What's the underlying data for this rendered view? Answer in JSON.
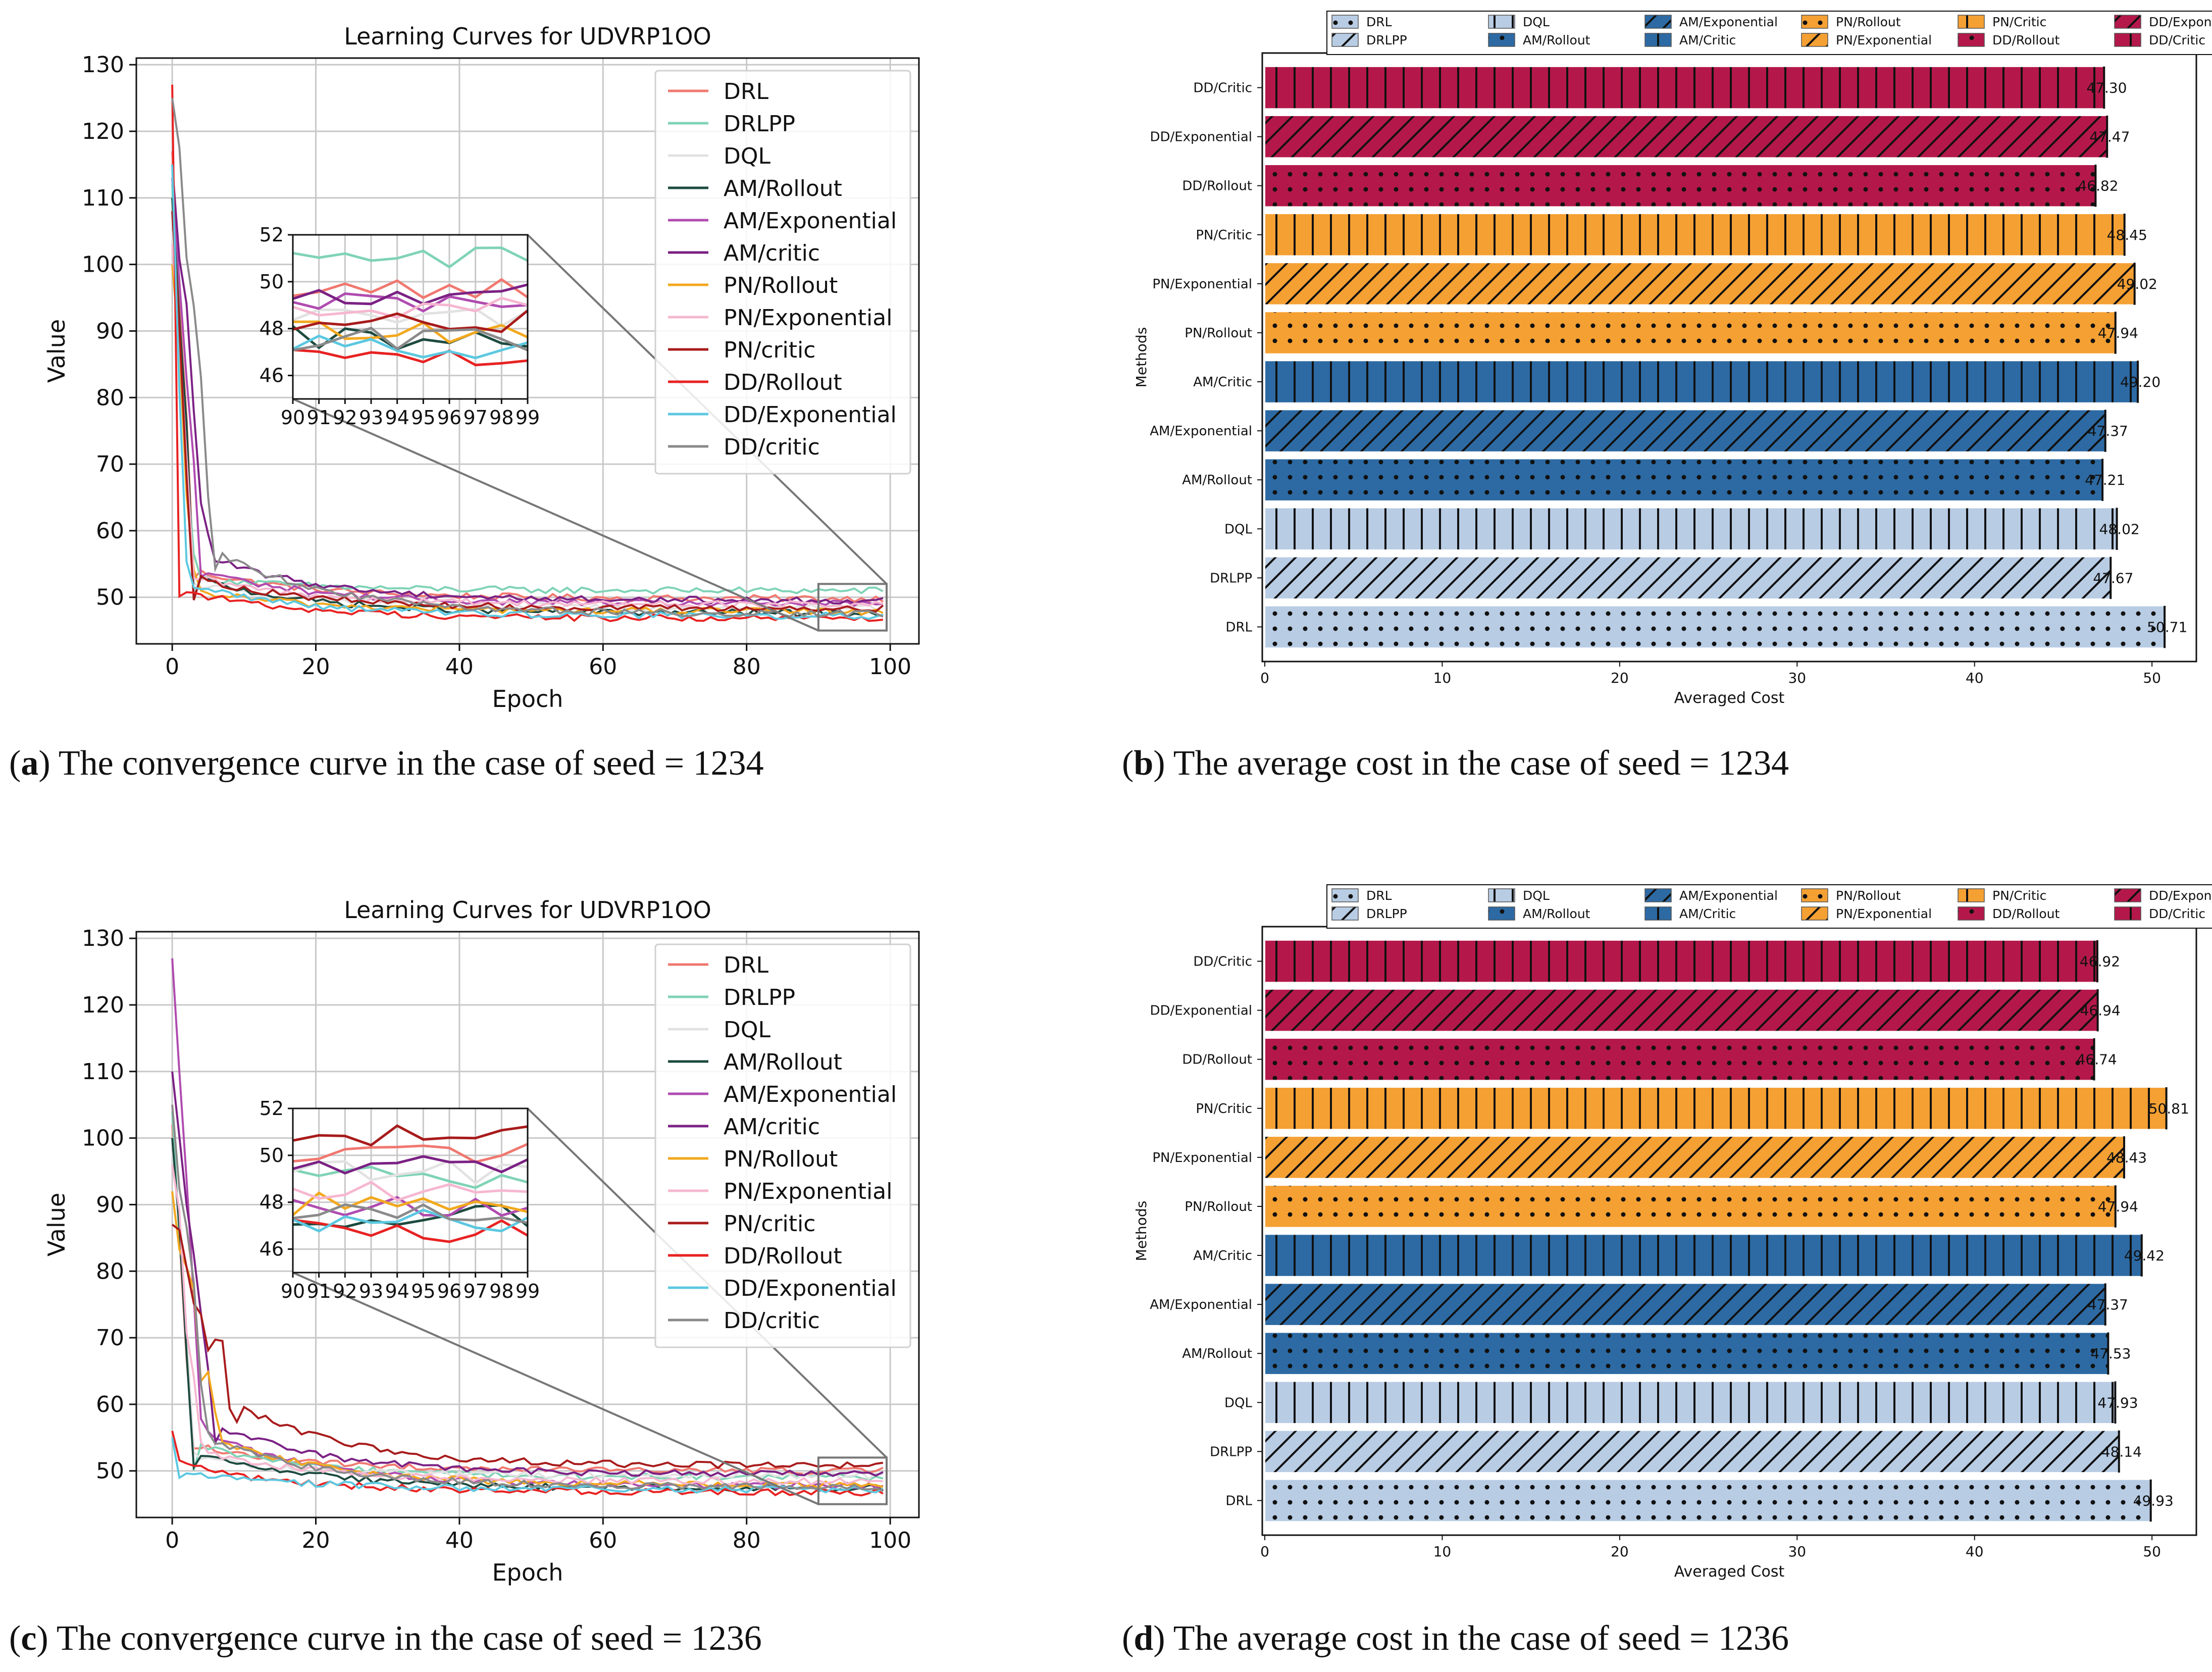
{
  "captions": {
    "a": {
      "letter": "a",
      "text": ") The convergence curve in the case of seed = 1234"
    },
    "b": {
      "letter": "b",
      "text": ") The average cost in the case of seed = 1234"
    },
    "c": {
      "letter": "c",
      "text": ") The convergence curve in the case of seed = 1236"
    },
    "d": {
      "letter": "d",
      "text": ") The average cost in the case of seed = 1236"
    }
  },
  "colors": {
    "DRL": "#f07870",
    "DRLPP": "#7fd3b6",
    "DQL": "#e2e2e2",
    "AM/Rollout": "#1d4a3f",
    "AM/Exponential": "#b04bb0",
    "AM/critic": "#7b2184",
    "PN/Rollout": "#f2a81e",
    "PN/Exponential": "#f6b7d0",
    "PN/critic": "#a81b1b",
    "DD/Rollout": "#e82222",
    "DD/Exponential": "#5cc8e0",
    "DD/critic": "#8a8a8a",
    "bar_DRL_family": "#b8cce4",
    "bar_AM_family": "#2d6aa3",
    "bar_PN_family": "#f5a033",
    "bar_DD_family": "#b4184b"
  },
  "chart_data": [
    {
      "id": "a",
      "type": "line",
      "title": "Learning Curves for UDVRP1OO",
      "xlabel": "Epoch",
      "ylabel": "Value",
      "xlim": [
        -5,
        104
      ],
      "ylim": [
        43,
        131
      ],
      "xticks": [
        0,
        20,
        40,
        60,
        80,
        100
      ],
      "yticks": [
        50,
        60,
        70,
        80,
        90,
        100,
        110,
        120,
        130
      ],
      "legend": [
        "DRL",
        "DRLPP",
        "DQL",
        "AM/Rollout",
        "AM/Exponential",
        "AM/critic",
        "PN/Rollout",
        "PN/Exponential",
        "PN/critic",
        "DD/Rollout",
        "DD/Exponential",
        "DD/critic"
      ],
      "series": [
        {
          "name": "DRL",
          "start": 117,
          "mid": 54,
          "final": 49.8,
          "drop": 3
        },
        {
          "name": "DRLPP",
          "start": 112,
          "mid": 53,
          "final": 51.0,
          "drop": 3
        },
        {
          "name": "DQL",
          "start": 105,
          "mid": 52,
          "final": 48.5,
          "drop": 3
        },
        {
          "name": "AM/Rollout",
          "start": 110,
          "mid": 53,
          "final": 47.6,
          "drop": 3
        },
        {
          "name": "AM/Exponential",
          "start": 113,
          "mid": 54,
          "final": 49.0,
          "drop": 4
        },
        {
          "name": "AM/critic",
          "start": 115,
          "mid": 56,
          "final": 49.5,
          "drop": 5
        },
        {
          "name": "PN/Rollout",
          "start": 100,
          "mid": 51,
          "final": 47.9,
          "drop": 3
        },
        {
          "name": "PN/Exponential",
          "start": 103,
          "mid": 53,
          "final": 48.9,
          "drop": 3
        },
        {
          "name": "PN/critic",
          "start": 108,
          "mid": 53,
          "final": 48.3,
          "drop": 3
        },
        {
          "name": "DD/Rollout",
          "start": 127,
          "mid": 51,
          "final": 46.8,
          "drop": 1
        },
        {
          "name": "DD/Exponential",
          "start": 115,
          "mid": 52,
          "final": 47.2,
          "drop": 2
        },
        {
          "name": "DD/critic",
          "start": 125,
          "mid": 57,
          "final": 47.5,
          "drop": 6
        }
      ],
      "inset": {
        "xlim": [
          90,
          99
        ],
        "ylim": [
          45,
          52
        ],
        "xticks": [
          90,
          91,
          92,
          93,
          94,
          95,
          96,
          97,
          98,
          99
        ],
        "yticks": [
          46,
          48,
          50,
          52
        ]
      }
    },
    {
      "id": "b",
      "type": "bar",
      "orientation": "horizontal",
      "xlabel": "Averaged Cost",
      "ylabel": "Methods",
      "xlim": [
        0,
        52.5
      ],
      "xticks": [
        0,
        10,
        20,
        30,
        40,
        50
      ],
      "categories": [
        "DRL",
        "DRLPP",
        "DQL",
        "AM/Rollout",
        "AM/Exponential",
        "AM/Critic",
        "PN/Rollout",
        "PN/Exponential",
        "PN/Critic",
        "DD/Rollout",
        "DD/Exponential",
        "DD/Critic"
      ],
      "values": [
        50.71,
        47.67,
        48.02,
        47.21,
        47.37,
        49.2,
        47.94,
        49.02,
        48.45,
        46.82,
        47.47,
        47.3
      ],
      "labels": [
        "50.71",
        "47.67",
        "48.02",
        "47.21",
        "47.37",
        "49.20",
        "47.94",
        "49.02",
        "48.45",
        "46.82",
        "47.47",
        "47.30"
      ],
      "legend": [
        "DRL",
        "DRLPP",
        "DQL",
        "AM/Rollout",
        "AM/Exponential",
        "AM/Critic",
        "PN/Rollout",
        "PN/Exponential",
        "PN/Critic",
        "DD/Rollout",
        "DD/Exponential",
        "DD/Critic"
      ]
    },
    {
      "id": "c",
      "type": "line",
      "title": "Learning Curves for UDVRP1OO",
      "xlabel": "Epoch",
      "ylabel": "Value",
      "xlim": [
        -5,
        104
      ],
      "ylim": [
        43,
        131
      ],
      "xticks": [
        0,
        20,
        40,
        60,
        80,
        100
      ],
      "yticks": [
        50,
        60,
        70,
        80,
        90,
        100,
        110,
        120,
        130
      ],
      "legend": [
        "DRL",
        "DRLPP",
        "DQL",
        "AM/Rollout",
        "AM/Exponential",
        "AM/critic",
        "PN/Rollout",
        "PN/Exponential",
        "PN/critic",
        "DD/Rollout",
        "DD/Exponential",
        "DD/critic"
      ],
      "series": [
        {
          "name": "DRL",
          "start": 102,
          "mid": 54,
          "final": 50.0,
          "drop": 3
        },
        {
          "name": "DRLPP",
          "start": 104,
          "mid": 54,
          "final": 49.0,
          "drop": 3
        },
        {
          "name": "DQL",
          "start": 98,
          "mid": 52,
          "final": 49.3,
          "drop": 3
        },
        {
          "name": "AM/Rollout",
          "start": 100,
          "mid": 53,
          "final": 47.4,
          "drop": 3
        },
        {
          "name": "AM/Exponential",
          "start": 127,
          "mid": 56,
          "final": 47.8,
          "drop": 4
        },
        {
          "name": "AM/critic",
          "start": 110,
          "mid": 57,
          "final": 49.5,
          "drop": 6
        },
        {
          "name": "PN/Rollout",
          "start": 92,
          "mid": 55,
          "final": 47.9,
          "drop": 6
        },
        {
          "name": "PN/Exponential",
          "start": 96,
          "mid": 53,
          "final": 48.4,
          "drop": 4
        },
        {
          "name": "PN/critic",
          "start": 87,
          "mid": 60,
          "final": 50.8,
          "drop": 9
        },
        {
          "name": "DD/Rollout",
          "start": 56,
          "mid": 51,
          "final": 46.8,
          "drop": 1
        },
        {
          "name": "DD/Exponential",
          "start": 55,
          "mid": 50,
          "final": 47.2,
          "drop": 1
        },
        {
          "name": "DD/critic",
          "start": 105,
          "mid": 55,
          "final": 47.6,
          "drop": 5
        }
      ],
      "inset": {
        "xlim": [
          90,
          99
        ],
        "ylim": [
          45,
          52
        ],
        "xticks": [
          90,
          91,
          92,
          93,
          94,
          95,
          96,
          97,
          98,
          99
        ],
        "yticks": [
          46,
          48,
          50,
          52
        ]
      }
    },
    {
      "id": "d",
      "type": "bar",
      "orientation": "horizontal",
      "xlabel": "Averaged Cost",
      "ylabel": "Methods",
      "xlim": [
        0,
        52.5
      ],
      "xticks": [
        0,
        10,
        20,
        30,
        40,
        50
      ],
      "categories": [
        "DRL",
        "DRLPP",
        "DQL",
        "AM/Rollout",
        "AM/Exponential",
        "AM/Critic",
        "PN/Rollout",
        "PN/Exponential",
        "PN/Critic",
        "DD/Rollout",
        "DD/Exponential",
        "DD/Critic"
      ],
      "values": [
        49.93,
        48.14,
        47.93,
        47.53,
        47.37,
        49.42,
        47.94,
        48.43,
        50.81,
        46.74,
        46.94,
        46.92
      ],
      "labels": [
        "49.93",
        "48.14",
        "47.93",
        "47.53",
        "47.37",
        "49.42",
        "47.94",
        "48.43",
        "50.81",
        "46.74",
        "46.94",
        "46.92"
      ],
      "legend": [
        "DRL",
        "DRLPP",
        "DQL",
        "AM/Rollout",
        "AM/Exponential",
        "AM/Critic",
        "PN/Rollout",
        "PN/Exponential",
        "PN/Critic",
        "DD/Rollout",
        "DD/Exponential",
        "DD/Critic"
      ]
    }
  ]
}
